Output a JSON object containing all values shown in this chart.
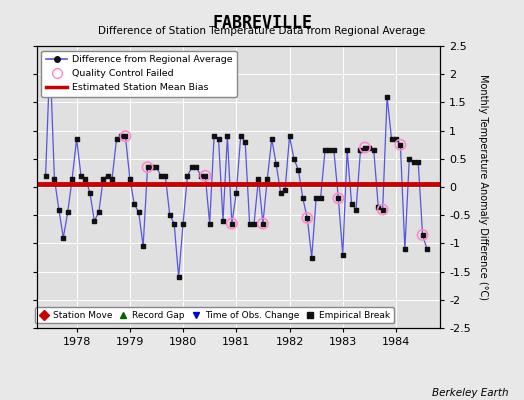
{
  "title": "FABREVILLE",
  "subtitle": "Difference of Station Temperature Data from Regional Average",
  "ylabel": "Monthly Temperature Anomaly Difference (°C)",
  "xlabel_bottom": "Berkeley Earth",
  "bias_value": 0.05,
  "ylim": [
    -2.5,
    2.5
  ],
  "xlim_start": 1977.25,
  "xlim_end": 1984.83,
  "xticks": [
    1978,
    1979,
    1980,
    1981,
    1982,
    1983,
    1984
  ],
  "yticks": [
    -2.5,
    -2,
    -1.5,
    -1,
    -0.5,
    0,
    0.5,
    1,
    1.5,
    2,
    2.5
  ],
  "line_color": "#5555dd",
  "marker_color": "#111111",
  "bias_color": "#cc0000",
  "qc_color": "#ff88cc",
  "plot_bg": "#e0e0e0",
  "fig_bg": "#e8e8e8",
  "grid_color": "#ffffff",
  "time_series": [
    [
      1977.417,
      0.2
    ],
    [
      1977.5,
      2.3
    ],
    [
      1977.583,
      0.15
    ],
    [
      1977.667,
      -0.4
    ],
    [
      1977.75,
      -0.9
    ],
    [
      1977.833,
      -0.45
    ],
    [
      1977.917,
      0.15
    ],
    [
      1978.0,
      0.85
    ],
    [
      1978.083,
      0.2
    ],
    [
      1978.167,
      0.15
    ],
    [
      1978.25,
      -0.1
    ],
    [
      1978.333,
      -0.6
    ],
    [
      1978.417,
      -0.45
    ],
    [
      1978.5,
      0.15
    ],
    [
      1978.583,
      0.2
    ],
    [
      1978.667,
      0.15
    ],
    [
      1978.75,
      0.85
    ],
    [
      1978.833,
      0.9
    ],
    [
      1978.917,
      0.9
    ],
    [
      1979.0,
      0.15
    ],
    [
      1979.083,
      -0.3
    ],
    [
      1979.167,
      -0.45
    ],
    [
      1979.25,
      -1.05
    ],
    [
      1979.333,
      0.35
    ],
    [
      1979.417,
      0.35
    ],
    [
      1979.5,
      0.35
    ],
    [
      1979.583,
      0.2
    ],
    [
      1979.667,
      0.2
    ],
    [
      1979.75,
      -0.5
    ],
    [
      1979.833,
      -0.65
    ],
    [
      1979.917,
      -1.6
    ],
    [
      1980.0,
      -0.65
    ],
    [
      1980.083,
      0.2
    ],
    [
      1980.167,
      0.35
    ],
    [
      1980.25,
      0.35
    ],
    [
      1980.333,
      0.2
    ],
    [
      1980.417,
      0.2
    ],
    [
      1980.5,
      -0.65
    ],
    [
      1980.583,
      0.9
    ],
    [
      1980.667,
      0.85
    ],
    [
      1980.75,
      -0.6
    ],
    [
      1980.833,
      0.9
    ],
    [
      1980.917,
      -0.65
    ],
    [
      1981.0,
      -0.1
    ],
    [
      1981.083,
      0.9
    ],
    [
      1981.167,
      0.8
    ],
    [
      1981.25,
      -0.65
    ],
    [
      1981.333,
      -0.65
    ],
    [
      1981.417,
      0.15
    ],
    [
      1981.5,
      -0.65
    ],
    [
      1981.583,
      0.15
    ],
    [
      1981.667,
      0.85
    ],
    [
      1981.75,
      0.4
    ],
    [
      1981.833,
      -0.1
    ],
    [
      1981.917,
      -0.05
    ],
    [
      1982.0,
      0.9
    ],
    [
      1982.083,
      0.5
    ],
    [
      1982.167,
      0.3
    ],
    [
      1982.25,
      -0.2
    ],
    [
      1982.333,
      -0.55
    ],
    [
      1982.417,
      -1.25
    ],
    [
      1982.5,
      -0.2
    ],
    [
      1982.583,
      -0.2
    ],
    [
      1982.667,
      0.65
    ],
    [
      1982.75,
      0.65
    ],
    [
      1982.833,
      0.65
    ],
    [
      1982.917,
      -0.2
    ],
    [
      1983.0,
      -1.2
    ],
    [
      1983.083,
      0.65
    ],
    [
      1983.167,
      -0.3
    ],
    [
      1983.25,
      -0.4
    ],
    [
      1983.333,
      0.65
    ],
    [
      1983.417,
      0.7
    ],
    [
      1983.5,
      0.7
    ],
    [
      1983.583,
      0.65
    ],
    [
      1983.667,
      -0.35
    ],
    [
      1983.75,
      -0.4
    ],
    [
      1983.833,
      1.6
    ],
    [
      1983.917,
      0.85
    ],
    [
      1984.0,
      0.85
    ],
    [
      1984.083,
      0.75
    ],
    [
      1984.167,
      -1.1
    ],
    [
      1984.25,
      0.5
    ],
    [
      1984.333,
      0.45
    ],
    [
      1984.417,
      0.45
    ],
    [
      1984.5,
      -0.85
    ],
    [
      1984.583,
      -1.1
    ]
  ],
  "qc_failed_points": [
    [
      1978.917,
      0.9
    ],
    [
      1979.333,
      0.35
    ],
    [
      1980.417,
      0.2
    ],
    [
      1980.917,
      -0.65
    ],
    [
      1981.5,
      -0.65
    ],
    [
      1982.333,
      -0.55
    ],
    [
      1982.917,
      -0.2
    ],
    [
      1983.417,
      0.7
    ],
    [
      1983.75,
      -0.4
    ],
    [
      1984.083,
      0.75
    ],
    [
      1984.5,
      -0.85
    ]
  ]
}
